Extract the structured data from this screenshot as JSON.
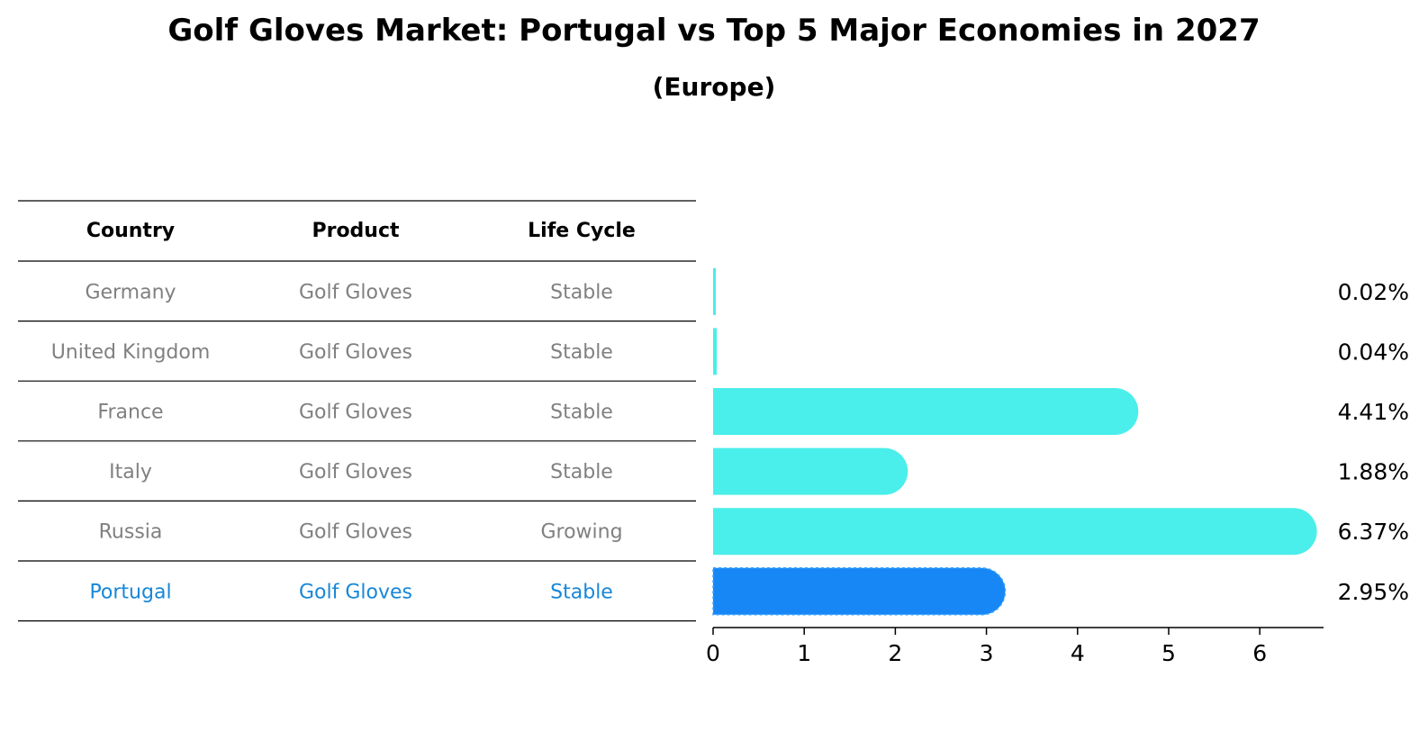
{
  "chart_data": {
    "type": "bar",
    "title": "Golf Gloves Market: Portugal vs Top 5 Major Economies in 2027",
    "subtitle": "(Europe)",
    "table": {
      "columns": [
        "Country",
        "Product",
        "Life Cycle"
      ],
      "rows": [
        [
          "Germany",
          "Golf Gloves",
          "Stable"
        ],
        [
          "United Kingdom",
          "Golf Gloves",
          "Stable"
        ],
        [
          "France",
          "Golf Gloves",
          "Stable"
        ],
        [
          "Italy",
          "Golf Gloves",
          "Stable"
        ],
        [
          "Russia",
          "Golf Gloves",
          "Growing"
        ],
        [
          "Portugal",
          "Golf Gloves",
          "Stable"
        ]
      ]
    },
    "categories": [
      "Germany",
      "United Kingdom",
      "France",
      "Italy",
      "Russia",
      "Portugal"
    ],
    "values": [
      0.02,
      0.04,
      4.41,
      1.88,
      6.37,
      2.95
    ],
    "value_labels": [
      "0.02%",
      "0.04%",
      "4.41%",
      "1.88%",
      "6.37%",
      "2.95%"
    ],
    "highlight": "Portugal",
    "xlim": [
      0,
      6.7
    ],
    "xticks": [
      "0",
      "1",
      "2",
      "3",
      "4",
      "5",
      "6"
    ],
    "colors": {
      "default": "#4aeeea",
      "highlight": "#1787f5",
      "highlight_text": "#1787d8",
      "table_text": "#808080"
    }
  }
}
